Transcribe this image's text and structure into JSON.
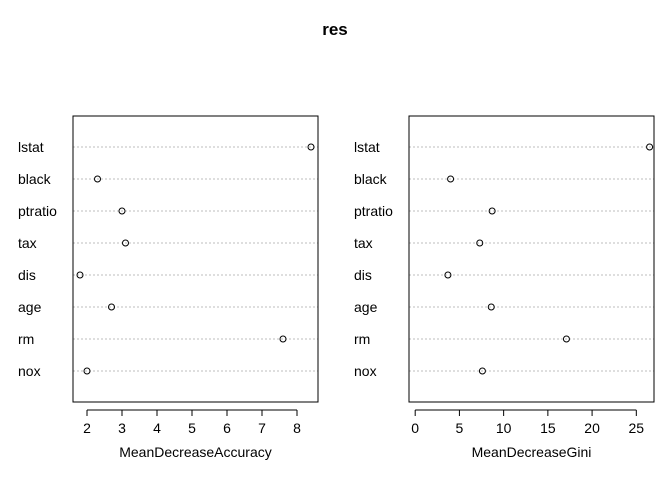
{
  "title": "res",
  "chart_data": [
    {
      "type": "dotchart",
      "xlabel": "MeanDecreaseAccuracy",
      "categories": [
        "lstat",
        "black",
        "ptratio",
        "tax",
        "dis",
        "age",
        "rm",
        "nox"
      ],
      "values": [
        8.4,
        2.3,
        3.0,
        3.1,
        1.8,
        2.7,
        7.6,
        2.0
      ],
      "xlim": [
        1.6,
        8.6
      ],
      "xticks": [
        2,
        3,
        4,
        5,
        6,
        7,
        8
      ],
      "grid": "dotted horizontal"
    },
    {
      "type": "dotchart",
      "xlabel": "MeanDecreaseGini",
      "categories": [
        "lstat",
        "black",
        "ptratio",
        "tax",
        "dis",
        "age",
        "rm",
        "nox"
      ],
      "values": [
        26.5,
        4.0,
        8.7,
        7.3,
        3.7,
        8.6,
        17.1,
        7.6
      ],
      "xlim": [
        -0.7,
        27.0
      ],
      "xticks": [
        0,
        5,
        10,
        15,
        20,
        25
      ],
      "grid": "dotted horizontal"
    }
  ]
}
